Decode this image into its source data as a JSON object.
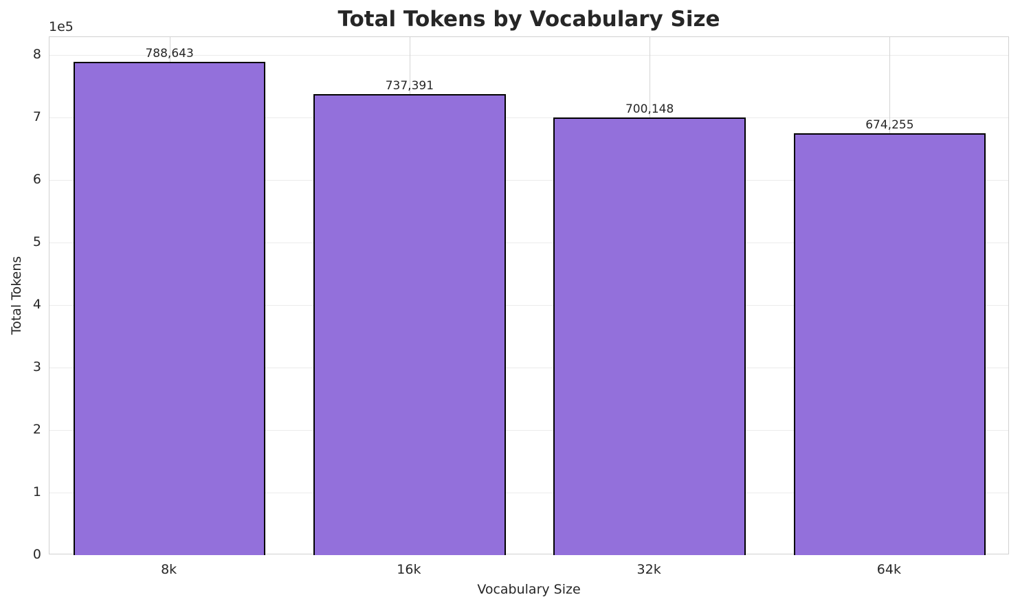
{
  "chart_data": {
    "type": "bar",
    "title": "Total Tokens by Vocabulary Size",
    "xlabel": "Vocabulary Size",
    "ylabel": "Total Tokens",
    "y_offset_label": "1e5",
    "categories": [
      "8k",
      "16k",
      "32k",
      "64k"
    ],
    "values": [
      788643,
      737391,
      700148,
      674255
    ],
    "value_labels": [
      "788,643",
      "737,391",
      "700,148",
      "674,255"
    ],
    "yticks": [
      "0",
      "1",
      "2",
      "3",
      "4",
      "5",
      "6",
      "7",
      "8"
    ],
    "ylim": [
      0,
      828000
    ],
    "grid": true,
    "bar_color": "#9370db",
    "edge_color": "#000000"
  }
}
